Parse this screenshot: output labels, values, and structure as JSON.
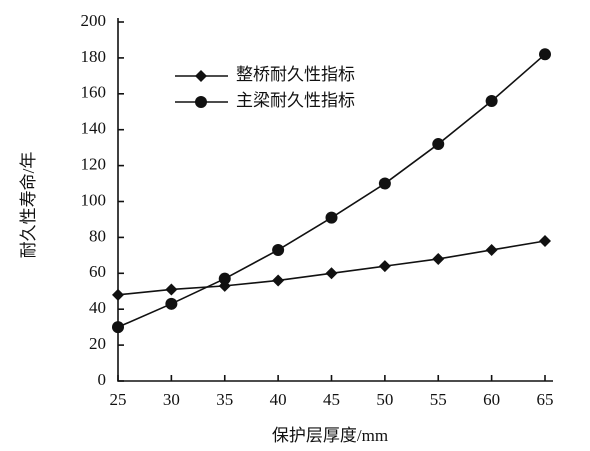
{
  "chart_data": {
    "type": "line",
    "x_label": "保护层厚度/mm",
    "y_label": "耐久性寿命/年",
    "x": [
      25,
      30,
      35,
      40,
      45,
      50,
      55,
      60,
      65
    ],
    "xlim": [
      25,
      65
    ],
    "xticks": [
      25,
      30,
      35,
      40,
      45,
      50,
      55,
      60,
      65
    ],
    "ylim": [
      0,
      200
    ],
    "yticks": [
      0,
      20,
      40,
      60,
      80,
      100,
      120,
      140,
      160,
      180,
      200
    ],
    "legend": "upper left",
    "series": [
      {
        "name": "整桥耐久性指标",
        "color": "#111111",
        "marker": "diamond",
        "values": [
          48,
          51,
          53,
          56,
          60,
          64,
          68,
          73,
          78
        ]
      },
      {
        "name": "主梁耐久性指标",
        "color": "#111111",
        "marker": "circle",
        "values": [
          30,
          43,
          57,
          73,
          91,
          110,
          132,
          156,
          182
        ]
      }
    ]
  }
}
